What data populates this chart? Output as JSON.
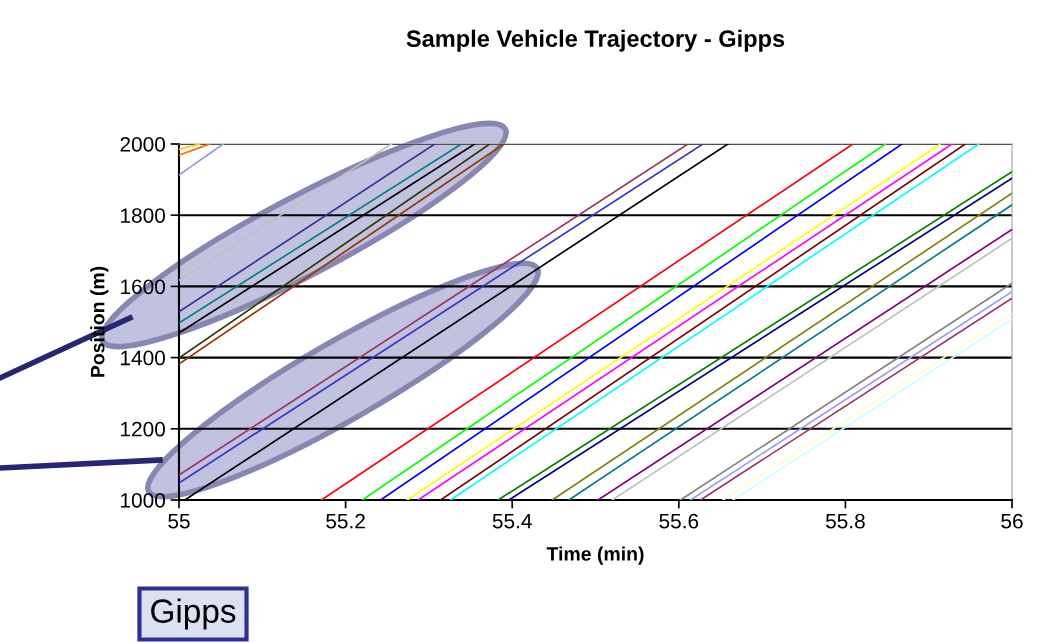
{
  "chart_data": {
    "type": "line",
    "title": "Sample Vehicle Trajectory - Gipps",
    "xlabel": "Time (min)",
    "ylabel": "Position (m)",
    "xlim": [
      55,
      56
    ],
    "ylim": [
      1000,
      2000
    ],
    "xticks": [
      55,
      55.2,
      55.4,
      55.6,
      55.8,
      56
    ],
    "yticks": [
      1000,
      1200,
      1400,
      1600,
      1800,
      2000
    ],
    "grid": "y",
    "marker": "none",
    "line_style": "solid",
    "annotations": [
      "Gipps"
    ],
    "series": [
      {
        "color": "#ffcc00",
        "x": [
          55,
          55.025
        ],
        "values": [
          1985,
          2000
        ]
      },
      {
        "color": "#ff6600",
        "x": [
          55,
          55.037
        ],
        "values": [
          1969,
          2000
        ]
      },
      {
        "color": "#9999cc",
        "x": [
          55,
          55.053
        ],
        "values": [
          1913,
          2000
        ]
      },
      {
        "color": "#c0c0c0",
        "x": [
          55,
          55.255
        ],
        "values": [
          1617,
          2000
        ]
      },
      {
        "color": "#333399",
        "x": [
          55,
          55.307
        ],
        "values": [
          1529,
          2000
        ]
      },
      {
        "color": "#008080",
        "x": [
          55,
          55.339
        ],
        "values": [
          1497,
          2000
        ]
      },
      {
        "color": "#000000",
        "x": [
          55,
          55.355
        ],
        "values": [
          1469,
          2000
        ]
      },
      {
        "color": "#333300",
        "x": [
          55,
          55.373
        ],
        "values": [
          1399,
          2000
        ]
      },
      {
        "color": "#993300",
        "x": [
          55,
          55.39
        ],
        "values": [
          1382,
          2000
        ]
      },
      {
        "color": "#993366",
        "x": [
          55,
          55.611
        ],
        "values": [
          1070,
          2000
        ]
      },
      {
        "color": "#3333cc",
        "x": [
          55,
          55.629
        ],
        "values": [
          1048,
          2000
        ]
      },
      {
        "color": "#000000",
        "x": [
          55.007,
          55.659
        ],
        "values": [
          1000,
          2000
        ]
      },
      {
        "color": "#ff0000",
        "x": [
          55.171,
          55.809
        ],
        "values": [
          1000,
          2000
        ]
      },
      {
        "color": "#00ff00",
        "x": [
          55.22,
          55.848
        ],
        "values": [
          1000,
          2000
        ]
      },
      {
        "color": "#0000ff",
        "x": [
          55.242,
          55.868
        ],
        "values": [
          1000,
          2000
        ]
      },
      {
        "color": "#ffff00",
        "x": [
          55.274,
          55.914
        ],
        "values": [
          1000,
          2000
        ]
      },
      {
        "color": "#ff00ff",
        "x": [
          55.287,
          55.928
        ],
        "values": [
          1000,
          2000
        ]
      },
      {
        "color": "#800000",
        "x": [
          55.314,
          55.944
        ],
        "values": [
          1000,
          2000
        ]
      },
      {
        "color": "#00ffff",
        "x": [
          55.326,
          55.96
        ],
        "values": [
          1000,
          2000
        ]
      },
      {
        "color": "#008000",
        "x": [
          55.383,
          56
        ],
        "values": [
          1000,
          1922
        ]
      },
      {
        "color": "#000080",
        "x": [
          55.396,
          56
        ],
        "values": [
          1000,
          1904
        ]
      },
      {
        "color": "#808000",
        "x": [
          55.448,
          56
        ],
        "values": [
          1000,
          1862
        ]
      },
      {
        "color": "#008080",
        "x": [
          55.468,
          56
        ],
        "values": [
          1000,
          1829
        ]
      },
      {
        "color": "#800080",
        "x": [
          55.503,
          56
        ],
        "values": [
          1000,
          1760
        ]
      },
      {
        "color": "#c0c0c0",
        "x": [
          55.52,
          56
        ],
        "values": [
          1000,
          1735
        ]
      },
      {
        "color": "#808080",
        "x": [
          55.602,
          56
        ],
        "values": [
          1000,
          1609
        ]
      },
      {
        "color": "#9999ff",
        "x": [
          55.614,
          56
        ],
        "values": [
          1000,
          1585
        ]
      },
      {
        "color": "#993366",
        "x": [
          55.626,
          56
        ],
        "values": [
          1000,
          1567
        ]
      },
      {
        "color": "#ffffcc",
        "x": [
          55.653,
          56
        ],
        "values": [
          1000,
          1524
        ]
      },
      {
        "color": "#ccffff",
        "x": [
          55.665,
          56
        ],
        "values": [
          1000,
          1508
        ]
      }
    ]
  }
}
